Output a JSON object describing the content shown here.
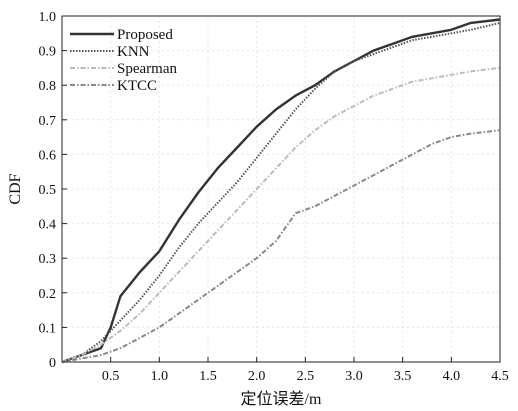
{
  "chart_data": {
    "type": "line",
    "title": "",
    "xlabel": "定位误差/m",
    "ylabel": "CDF",
    "xlim": [
      0,
      4.5
    ],
    "ylim": [
      0,
      1.0
    ],
    "xticks": [
      "0.5",
      "1.0",
      "1.5",
      "2.0",
      "2.5",
      "3.0",
      "3.5",
      "4.0",
      "4.5"
    ],
    "xtick_values": [
      0.5,
      1.0,
      1.5,
      2.0,
      2.5,
      3.0,
      3.5,
      4.0,
      4.5
    ],
    "yticks": [
      "0",
      "0.1",
      "0.2",
      "0.3",
      "0.4",
      "0.5",
      "0.6",
      "0.7",
      "0.8",
      "0.9",
      "1.0"
    ],
    "ytick_values": [
      0,
      0.1,
      0.2,
      0.3,
      0.4,
      0.5,
      0.6,
      0.7,
      0.8,
      0.9,
      1.0
    ],
    "grid": true,
    "legend_position": "top-left",
    "series": [
      {
        "name": "Proposed",
        "color": "#333333",
        "style": "solid",
        "x": [
          0.0,
          0.2,
          0.4,
          0.5,
          0.6,
          0.8,
          1.0,
          1.2,
          1.4,
          1.6,
          1.8,
          2.0,
          2.2,
          2.4,
          2.6,
          2.8,
          3.0,
          3.2,
          3.4,
          3.6,
          3.8,
          4.0,
          4.2,
          4.5
        ],
        "y": [
          0.0,
          0.02,
          0.04,
          0.1,
          0.19,
          0.26,
          0.32,
          0.41,
          0.49,
          0.56,
          0.62,
          0.68,
          0.73,
          0.77,
          0.8,
          0.84,
          0.87,
          0.9,
          0.92,
          0.94,
          0.95,
          0.96,
          0.98,
          0.99
        ]
      },
      {
        "name": "KNN",
        "color": "#555555",
        "style": "dotted",
        "x": [
          0.0,
          0.2,
          0.4,
          0.6,
          0.8,
          1.0,
          1.2,
          1.4,
          1.6,
          1.8,
          2.0,
          2.2,
          2.4,
          2.6,
          2.8,
          3.0,
          3.2,
          3.4,
          3.6,
          3.8,
          4.0,
          4.2,
          4.5
        ],
        "y": [
          0.0,
          0.02,
          0.06,
          0.12,
          0.18,
          0.25,
          0.33,
          0.4,
          0.46,
          0.52,
          0.59,
          0.66,
          0.73,
          0.79,
          0.84,
          0.87,
          0.89,
          0.91,
          0.93,
          0.94,
          0.95,
          0.96,
          0.98
        ]
      },
      {
        "name": "Spearman",
        "color": "#bbbbbb",
        "style": "dashdot",
        "x": [
          0.0,
          0.2,
          0.4,
          0.6,
          0.8,
          1.0,
          1.2,
          1.4,
          1.6,
          1.8,
          2.0,
          2.2,
          2.4,
          2.6,
          2.8,
          3.0,
          3.2,
          3.4,
          3.6,
          3.8,
          4.0,
          4.2,
          4.5
        ],
        "y": [
          0.0,
          0.02,
          0.05,
          0.09,
          0.14,
          0.2,
          0.26,
          0.32,
          0.38,
          0.44,
          0.5,
          0.56,
          0.62,
          0.67,
          0.71,
          0.74,
          0.77,
          0.79,
          0.81,
          0.82,
          0.83,
          0.84,
          0.85
        ]
      },
      {
        "name": "KTCC",
        "color": "#888888",
        "style": "dashdot",
        "x": [
          0.0,
          0.2,
          0.4,
          0.6,
          0.8,
          1.0,
          1.2,
          1.4,
          1.6,
          1.8,
          2.0,
          2.2,
          2.4,
          2.6,
          2.8,
          3.0,
          3.2,
          3.4,
          3.6,
          3.8,
          4.0,
          4.2,
          4.5
        ],
        "y": [
          0.0,
          0.01,
          0.02,
          0.04,
          0.07,
          0.1,
          0.14,
          0.18,
          0.22,
          0.26,
          0.3,
          0.35,
          0.43,
          0.45,
          0.48,
          0.51,
          0.54,
          0.57,
          0.6,
          0.63,
          0.65,
          0.66,
          0.67
        ]
      }
    ]
  }
}
